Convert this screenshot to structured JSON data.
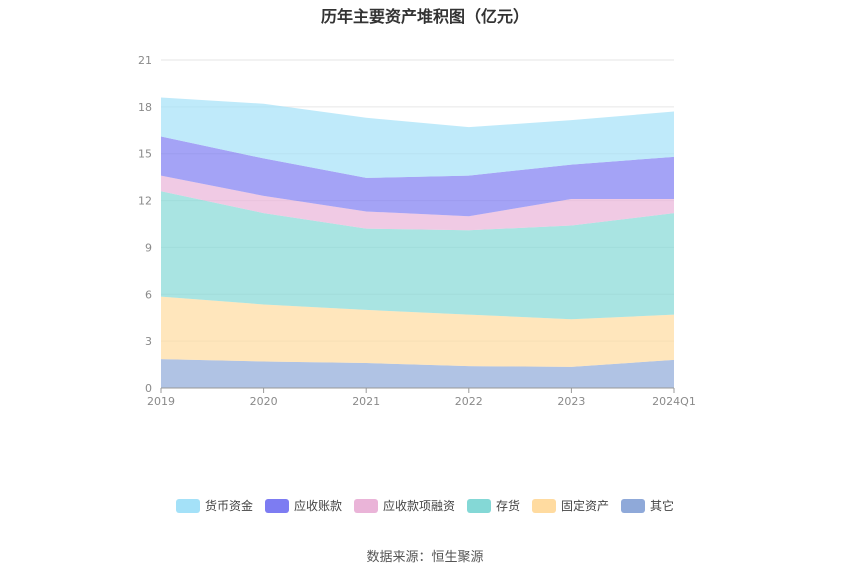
{
  "chart_data": {
    "type": "area",
    "title": "历年主要资产堆积图（亿元）",
    "categories": [
      "2019",
      "2020",
      "2021",
      "2022",
      "2023",
      "2024Q1"
    ],
    "ylim": [
      0,
      21
    ],
    "yticks": [
      0,
      3,
      6,
      9,
      12,
      15,
      18,
      21
    ],
    "stacked": true,
    "grid": true,
    "legend_position": "bottom",
    "series": [
      {
        "name": "其它",
        "color": "#8fa9d9",
        "values": [
          1.85,
          1.7,
          1.6,
          1.4,
          1.35,
          1.8
        ]
      },
      {
        "name": "固定资产",
        "color": "#ffdba0",
        "values": [
          4.0,
          3.65,
          3.4,
          3.3,
          3.05,
          2.9
        ]
      },
      {
        "name": "存货",
        "color": "#84d8d6",
        "values": [
          6.75,
          5.85,
          5.2,
          5.4,
          6.0,
          6.5
        ]
      },
      {
        "name": "应收款项融资",
        "color": "#eab4d8",
        "values": [
          1.0,
          1.1,
          1.1,
          0.9,
          1.7,
          0.9
        ]
      },
      {
        "name": "应收账款",
        "color": "#7d7cf2",
        "values": [
          2.5,
          2.4,
          2.15,
          2.6,
          2.2,
          2.7
        ]
      },
      {
        "name": "货币资金",
        "color": "#a4e1f8",
        "values": [
          2.5,
          3.5,
          3.85,
          3.1,
          2.85,
          2.9
        ]
      }
    ]
  },
  "legend": {
    "items": [
      {
        "label": "货币资金",
        "color": "#a4e1f8"
      },
      {
        "label": "应收账款",
        "color": "#7d7cf2"
      },
      {
        "label": "应收款项融资",
        "color": "#eab4d8"
      },
      {
        "label": "存货",
        "color": "#84d8d6"
      },
      {
        "label": "固定资产",
        "color": "#ffdba0"
      },
      {
        "label": "其它",
        "color": "#8fa9d9"
      }
    ]
  },
  "footer": {
    "source": "数据来源：恒生聚源"
  }
}
